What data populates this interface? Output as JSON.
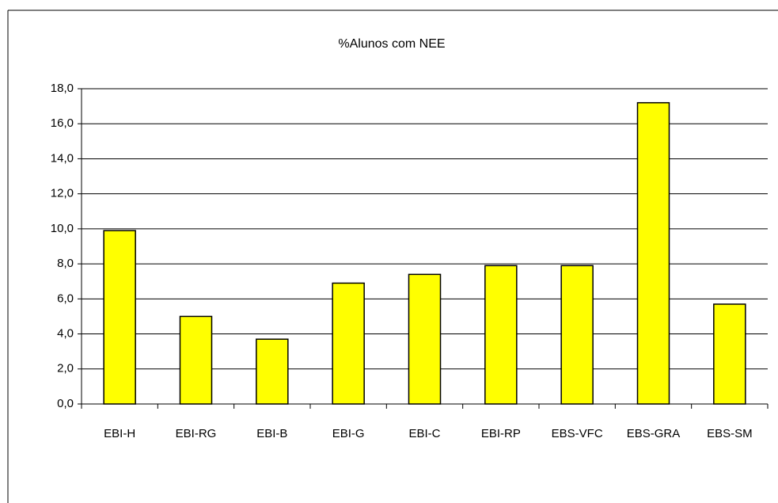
{
  "chart_data": {
    "type": "bar",
    "title": "%Alunos com NEE",
    "categories": [
      "EBI-H",
      "EBI-RG",
      "EBI-B",
      "EBI-G",
      "EBI-C",
      "EBI-RP",
      "EBS-VFC",
      "EBS-GRA",
      "EBS-SM"
    ],
    "values": [
      9.9,
      5.0,
      3.7,
      6.9,
      7.4,
      7.9,
      7.9,
      17.2,
      5.7
    ],
    "color": "#ffff00",
    "ylim": [
      0,
      18
    ],
    "yticks": [
      {
        "value": 0,
        "label": "0,0"
      },
      {
        "value": 2,
        "label": "2,0"
      },
      {
        "value": 4,
        "label": "4,0"
      },
      {
        "value": 6,
        "label": "6,0"
      },
      {
        "value": 8,
        "label": "8,0"
      },
      {
        "value": 10,
        "label": "10,0"
      },
      {
        "value": 12,
        "label": "12,0"
      },
      {
        "value": 14,
        "label": "14,0"
      },
      {
        "value": 16,
        "label": "16,0"
      },
      {
        "value": 18,
        "label": "18,0"
      }
    ],
    "grid": true
  }
}
